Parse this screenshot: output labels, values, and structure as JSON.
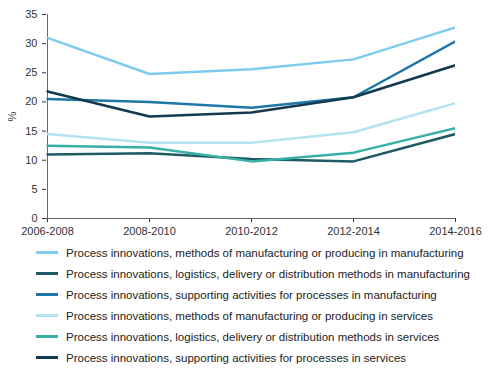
{
  "chart_data": {
    "type": "line",
    "x": [
      "2006-2008",
      "2008-2010",
      "2010-2012",
      "2012-2014",
      "2014-2016"
    ],
    "ylabel": "%",
    "ylim": [
      0,
      35
    ],
    "yticks": [
      0,
      5,
      10,
      15,
      20,
      25,
      30,
      35
    ],
    "grid": false,
    "legend": "bottom",
    "series": [
      {
        "name": "Process innovations, methods of manufacturing or producing in manufacturing",
        "color": "#7fcbef",
        "values": [
          31.0,
          24.8,
          25.6,
          27.3,
          32.8
        ]
      },
      {
        "name": "Process innovations, logistics, delivery or distribution methods in manufacturing",
        "color": "#1f5a63",
        "values": [
          11.0,
          11.2,
          10.2,
          9.8,
          14.5
        ]
      },
      {
        "name": "Process innovations, supporting activities for processes in manufacturing",
        "color": "#1f76a8",
        "values": [
          20.5,
          20.0,
          19.0,
          20.8,
          30.4
        ]
      },
      {
        "name": "Process innovations, methods of manufacturing or producing in services",
        "color": "#b3e3ee",
        "values": [
          14.5,
          13.0,
          13.0,
          14.8,
          19.8
        ]
      },
      {
        "name": "Process innovations, logistics, delivery or distribution methods in services",
        "color": "#37b1a6",
        "values": [
          12.5,
          12.2,
          9.8,
          11.3,
          15.5
        ]
      },
      {
        "name": "Process innovations, supporting activities for processes in services",
        "color": "#13394f",
        "values": [
          21.8,
          17.5,
          18.2,
          20.8,
          26.3
        ]
      }
    ]
  }
}
